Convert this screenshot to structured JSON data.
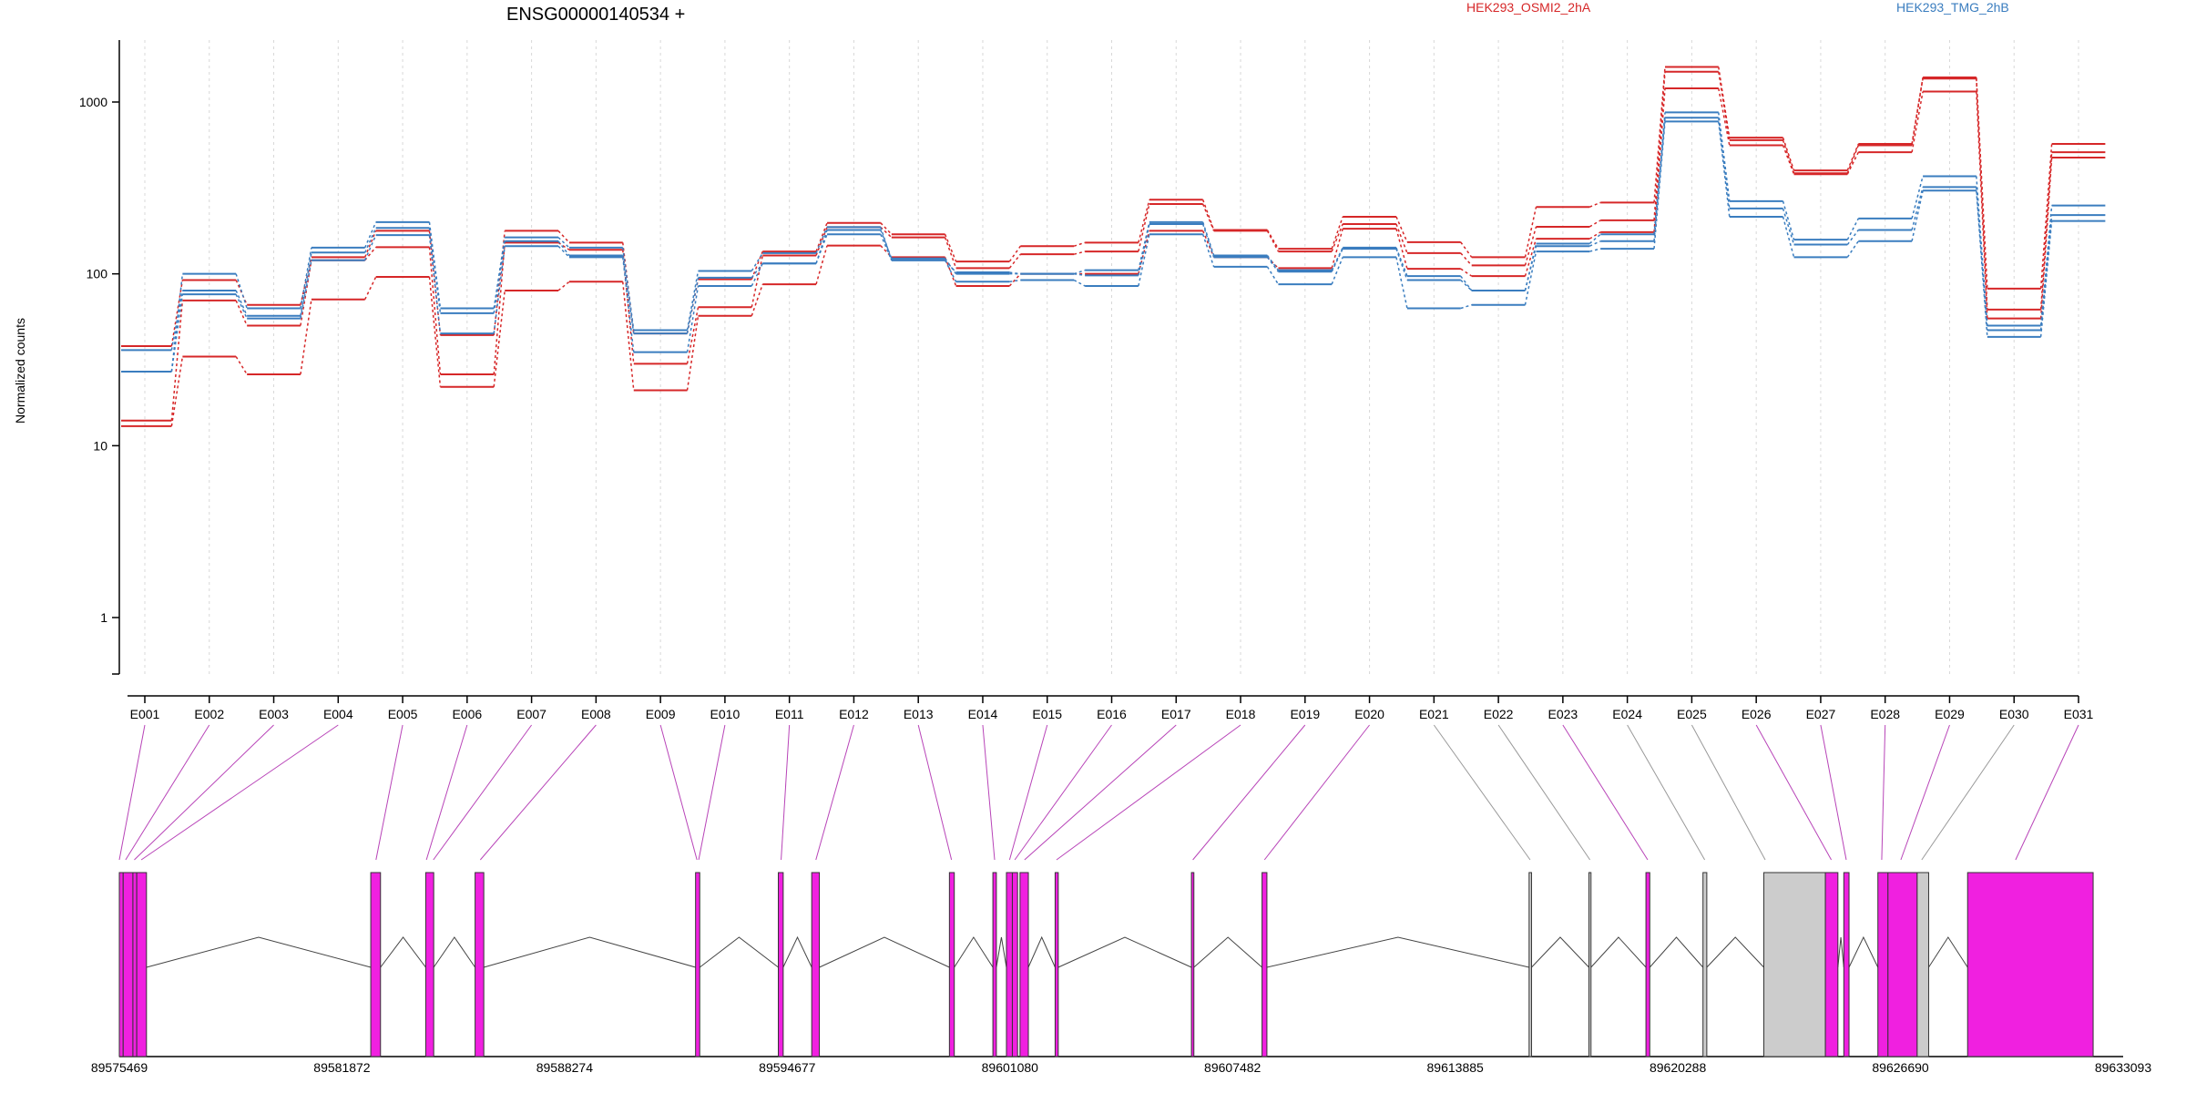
{
  "chart_data": {
    "type": "line",
    "title": "ENSG00000140534 +",
    "ylabel": "Normalized counts",
    "xlabel": "",
    "yscale": "log",
    "ylim": [
      0.4,
      2000
    ],
    "yticks": [
      "1",
      "10",
      "100",
      "1000"
    ],
    "grid": "vertical dotted at each exon",
    "legend_placement": "top",
    "categories": [
      "E001",
      "E002",
      "E003",
      "E004",
      "E005",
      "E006",
      "E007",
      "E008",
      "E009",
      "E010",
      "E011",
      "E012",
      "E013",
      "E014",
      "E015",
      "E016",
      "E017",
      "E018",
      "E019",
      "E020",
      "E021",
      "E022",
      "E023",
      "E024",
      "E025",
      "E026",
      "E027",
      "E028",
      "E029",
      "E030",
      "E031"
    ],
    "groups": [
      {
        "name": "HEK293_OSMI2_2hA",
        "color": "#d62728"
      },
      {
        "name": "HEK293_TMG_2hB",
        "color": "#3a7dbf"
      }
    ],
    "series": [
      {
        "group": 0,
        "values": [
          38,
          92,
          66,
          125,
          178,
          44,
          178,
          152,
          45,
          93,
          135,
          198,
          170,
          118,
          145,
          152,
          270,
          180,
          140,
          215,
          153,
          125,
          245,
          260,
          1600,
          620,
          400,
          570,
          1390,
          82,
          570
        ]
      },
      {
        "group": 0,
        "values": [
          14,
          70,
          50,
          120,
          143,
          26,
          152,
          138,
          30,
          64,
          128,
          187,
          163,
          108,
          130,
          135,
          255,
          178,
          135,
          195,
          132,
          112,
          188,
          205,
          1500,
          600,
          385,
          560,
          1370,
          62,
          510
        ]
      },
      {
        "group": 0,
        "values": [
          13,
          33,
          26,
          71,
          96,
          22,
          80,
          90,
          21,
          57,
          87,
          146,
          125,
          85,
          100,
          100,
          178,
          125,
          108,
          183,
          107,
          97,
          160,
          175,
          1200,
          560,
          380,
          510,
          1150,
          55,
          475
        ]
      },
      {
        "group": 1,
        "values": [
          27,
          100,
          63,
          142,
          200,
          63,
          163,
          142,
          47,
          104,
          132,
          187,
          120,
          102,
          100,
          105,
          200,
          128,
          105,
          142,
          97,
          80,
          150,
          170,
          870,
          265,
          158,
          210,
          370,
          50,
          250
        ]
      },
      {
        "group": 1,
        "values": [
          36,
          80,
          57,
          133,
          185,
          59,
          155,
          128,
          45,
          95,
          115,
          180,
          123,
          100,
          100,
          98,
          195,
          125,
          103,
          140,
          92,
          80,
          145,
          155,
          810,
          240,
          148,
          180,
          320,
          47,
          220
        ]
      },
      {
        "group": 1,
        "values": [
          27,
          76,
          55,
          120,
          168,
          45,
          145,
          125,
          35,
          85,
          115,
          170,
          120,
          90,
          92,
          85,
          170,
          110,
          87,
          125,
          63,
          66,
          135,
          140,
          770,
          215,
          125,
          155,
          305,
          43,
          203
        ]
      }
    ]
  },
  "gene_model": {
    "coordinates": [
      "89575469",
      "89581872",
      "89588274",
      "89594677",
      "89601080",
      "89607482",
      "89613885",
      "89620288",
      "89626690",
      "89633093"
    ],
    "range": [
      89575469,
      89633093
    ],
    "exons": [
      {
        "start": 89575469,
        "end": 89575580,
        "fill": "#f020e0"
      },
      {
        "start": 89575580,
        "end": 89575860,
        "fill": "#f020e0"
      },
      {
        "start": 89575860,
        "end": 89575970,
        "fill": "#f020e0"
      },
      {
        "start": 89575970,
        "end": 89576250,
        "fill": "#f020e0"
      },
      {
        "start": 89582700,
        "end": 89582980,
        "fill": "#f020e0"
      },
      {
        "start": 89584280,
        "end": 89584510,
        "fill": "#f020e0"
      },
      {
        "start": 89585700,
        "end": 89585950,
        "fill": "#f020e0"
      },
      {
        "start": 89592040,
        "end": 89592160,
        "fill": "#f020e0"
      },
      {
        "start": 89594420,
        "end": 89594560,
        "fill": "#f020e0"
      },
      {
        "start": 89595380,
        "end": 89595600,
        "fill": "#f020e0"
      },
      {
        "start": 89599340,
        "end": 89599480,
        "fill": "#f020e0"
      },
      {
        "start": 89600590,
        "end": 89600690,
        "fill": "#f020e0"
      },
      {
        "start": 89600980,
        "end": 89601150,
        "fill": "#f020e0"
      },
      {
        "start": 89601150,
        "end": 89601300,
        "fill": "#f020e0"
      },
      {
        "start": 89601370,
        "end": 89601610,
        "fill": "#f020e0"
      },
      {
        "start": 89602380,
        "end": 89602470,
        "fill": "#f020e0"
      },
      {
        "start": 89606300,
        "end": 89606370,
        "fill": "#f020e0"
      },
      {
        "start": 89608330,
        "end": 89608470,
        "fill": "#f020e0"
      },
      {
        "start": 89616010,
        "end": 89616080,
        "fill": "#cccccc"
      },
      {
        "start": 89617730,
        "end": 89617790,
        "fill": "#cccccc"
      },
      {
        "start": 89619370,
        "end": 89619480,
        "fill": "#f020e0"
      },
      {
        "start": 89621010,
        "end": 89621120,
        "fill": "#cccccc"
      },
      {
        "start": 89622760,
        "end": 89624530,
        "fill": "#cccccc"
      },
      {
        "start": 89624530,
        "end": 89624890,
        "fill": "#f020e0"
      },
      {
        "start": 89625060,
        "end": 89625210,
        "fill": "#f020e0"
      },
      {
        "start": 89626040,
        "end": 89626330,
        "fill": "#f020e0"
      },
      {
        "start": 89626330,
        "end": 89627170,
        "fill": "#f020e0"
      },
      {
        "start": 89627170,
        "end": 89627500,
        "fill": "#cccccc"
      },
      {
        "start": 89628620,
        "end": 89632230,
        "fill": "#f020e0"
      }
    ],
    "exon_links": [
      {
        "bin": "E001",
        "coord": 89575469
      },
      {
        "bin": "E002",
        "coord": 89575650
      },
      {
        "bin": "E003",
        "coord": 89575900
      },
      {
        "bin": "E004",
        "coord": 89576100
      },
      {
        "bin": "E005",
        "coord": 89582850
      },
      {
        "bin": "E006",
        "coord": 89584300
      },
      {
        "bin": "E007",
        "coord": 89584500
      },
      {
        "bin": "E008",
        "coord": 89585850
      },
      {
        "bin": "E009",
        "coord": 89592080
      },
      {
        "bin": "E010",
        "coord": 89592130
      },
      {
        "bin": "E011",
        "coord": 89594500
      },
      {
        "bin": "E012",
        "coord": 89595500
      },
      {
        "bin": "E013",
        "coord": 89599400
      },
      {
        "bin": "E014",
        "coord": 89600640
      },
      {
        "bin": "E015",
        "coord": 89601070
      },
      {
        "bin": "E016",
        "coord": 89601220
      },
      {
        "bin": "E017",
        "coord": 89601500
      },
      {
        "bin": "E018",
        "coord": 89602420
      },
      {
        "bin": "E019",
        "coord": 89606340
      },
      {
        "bin": "E020",
        "coord": 89608400
      },
      {
        "bin": "E021",
        "coord": 89616040
      },
      {
        "bin": "E022",
        "coord": 89617760
      },
      {
        "bin": "E023",
        "coord": 89619420
      },
      {
        "bin": "E024",
        "coord": 89621060
      },
      {
        "bin": "E025",
        "coord": 89622800
      },
      {
        "bin": "E026",
        "coord": 89624700
      },
      {
        "bin": "E027",
        "coord": 89625130
      },
      {
        "bin": "E028",
        "coord": 89626150
      },
      {
        "bin": "E029",
        "coord": 89626700
      },
      {
        "bin": "E030",
        "coord": 89627300
      },
      {
        "bin": "E031",
        "coord": 89630000
      }
    ],
    "exon_link_colors": {
      "exonic": "#b844b8",
      "grey": "#999999"
    }
  }
}
